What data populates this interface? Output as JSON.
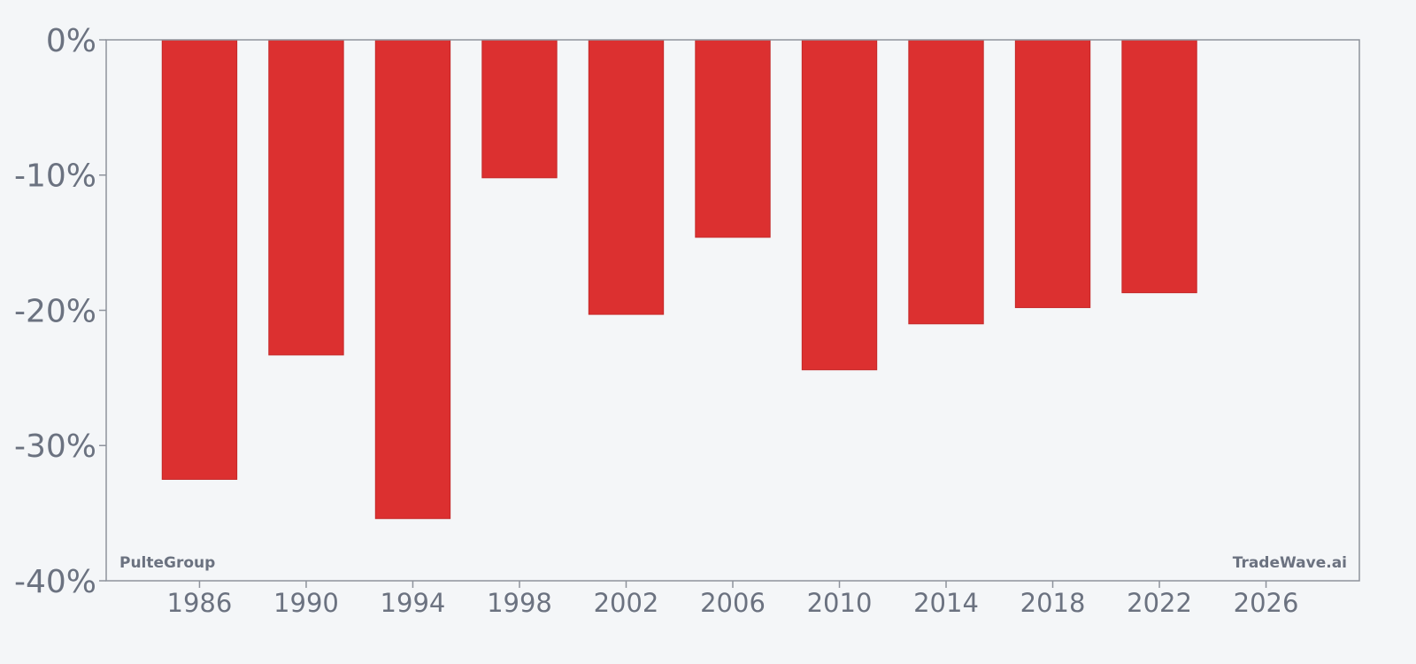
{
  "colors": {
    "background": "#f4f6f8",
    "bar": "#dc3030",
    "bar_edge": "#c42828",
    "axis": "#8e939c",
    "text": "#6b7280"
  },
  "watermark": {
    "left": "PulteGroup",
    "right": "TradeWave.ai"
  },
  "chart_data": {
    "type": "bar",
    "x": [
      1986,
      1990,
      1994,
      1998,
      2002,
      2006,
      2010,
      2014,
      2018,
      2022
    ],
    "values": [
      -32.5,
      -23.3,
      -35.4,
      -10.2,
      -20.3,
      -14.6,
      -24.4,
      -21.0,
      -19.8,
      -18.7
    ],
    "xlim": [
      1982.5,
      2029.5
    ],
    "ylim": [
      -40,
      0
    ],
    "xticks": [
      1986,
      1990,
      1994,
      1998,
      2002,
      2006,
      2010,
      2014,
      2018,
      2022,
      2026
    ],
    "yticks": [
      0,
      -10,
      -20,
      -30,
      -40
    ],
    "ytick_labels": [
      "0%",
      "-10%",
      "-20%",
      "-30%",
      "-40%"
    ],
    "bar_width_years": 2.8,
    "grid": false,
    "title": "",
    "xlabel": "",
    "ylabel": ""
  }
}
